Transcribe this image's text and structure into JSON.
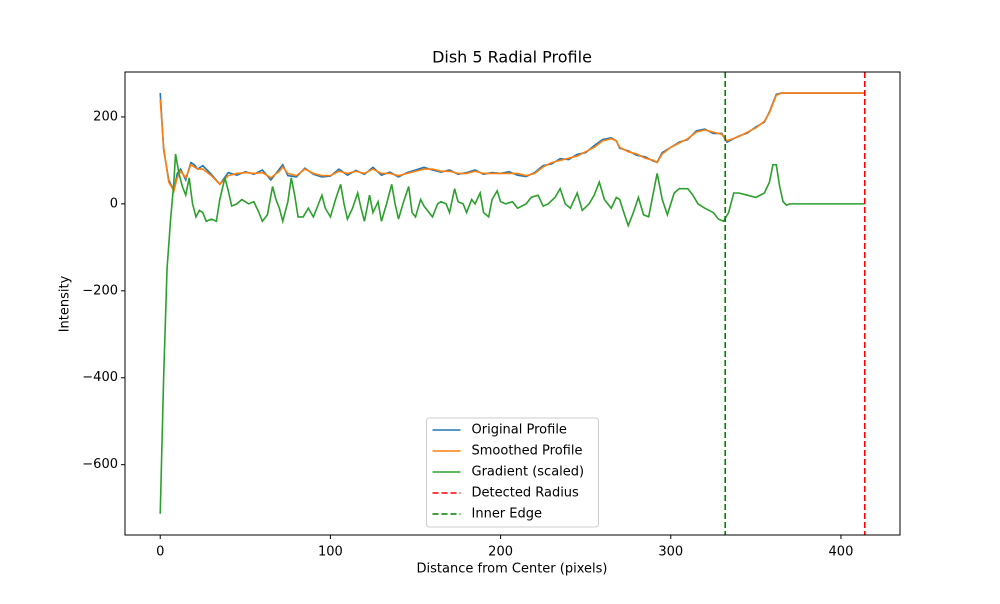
{
  "chart_data": {
    "type": "line",
    "title": "Dish 5 Radial Profile",
    "xlabel": "Distance from Center (pixels)",
    "ylabel": "Intensity",
    "xlim": [
      -20.7,
      434.7
    ],
    "ylim": [
      -761.8,
      303.4
    ],
    "xticks": [
      0,
      100,
      200,
      300,
      400
    ],
    "yticks": [
      {
        "value": -600,
        "label": "−600"
      },
      {
        "value": -400,
        "label": "−400"
      },
      {
        "value": -200,
        "label": "−200"
      },
      0,
      200
    ],
    "legend": "lower center",
    "grid": false,
    "series": [
      {
        "name": "Original Profile",
        "color": "#1f77b4",
        "x": [
          0,
          2,
          5,
          8,
          10,
          12,
          15,
          18,
          20,
          22,
          25,
          30,
          35,
          40,
          45,
          50,
          55,
          60,
          65,
          70,
          72,
          75,
          80,
          85,
          90,
          95,
          100,
          105,
          110,
          115,
          120,
          125,
          130,
          135,
          140,
          145,
          150,
          155,
          160,
          165,
          170,
          175,
          180,
          185,
          190,
          195,
          200,
          205,
          210,
          215,
          220,
          225,
          230,
          235,
          240,
          245,
          250,
          255,
          260,
          265,
          268,
          270,
          275,
          280,
          285,
          290,
          292,
          295,
          300,
          305,
          310,
          315,
          320,
          325,
          330,
          333,
          340,
          345,
          350,
          355,
          358,
          362,
          365,
          370,
          414
        ],
        "values": [
          255,
          125,
          55,
          30,
          70,
          80,
          55,
          95,
          90,
          80,
          88,
          68,
          45,
          72,
          66,
          74,
          68,
          78,
          55,
          80,
          90,
          65,
          62,
          82,
          68,
          62,
          64,
          80,
          66,
          77,
          68,
          84,
          66,
          73,
          62,
          72,
          78,
          84,
          78,
          73,
          78,
          68,
          72,
          78,
          68,
          72,
          70,
          74,
          66,
          63,
          72,
          88,
          92,
          104,
          102,
          114,
          118,
          134,
          148,
          152,
          145,
          128,
          122,
          112,
          108,
          98,
          96,
          118,
          130,
          142,
          148,
          168,
          172,
          162,
          162,
          142,
          156,
          163,
          177,
          188,
          212,
          252,
          255,
          255,
          255
        ]
      },
      {
        "name": "Smoothed Profile",
        "color": "#ff7f0e",
        "x": [
          0,
          2,
          5,
          8,
          10,
          12,
          15,
          18,
          20,
          22,
          25,
          30,
          35,
          40,
          45,
          50,
          55,
          60,
          65,
          70,
          72,
          75,
          80,
          85,
          90,
          95,
          100,
          105,
          110,
          115,
          120,
          125,
          130,
          135,
          140,
          145,
          150,
          155,
          160,
          165,
          170,
          175,
          180,
          185,
          190,
          195,
          200,
          205,
          210,
          215,
          220,
          225,
          230,
          235,
          240,
          245,
          250,
          255,
          260,
          265,
          268,
          270,
          275,
          280,
          285,
          290,
          292,
          295,
          300,
          305,
          310,
          315,
          320,
          325,
          330,
          333,
          340,
          345,
          350,
          355,
          358,
          362,
          365,
          370,
          414
        ],
        "values": [
          240,
          130,
          50,
          30,
          60,
          75,
          60,
          90,
          85,
          80,
          80,
          65,
          45,
          65,
          70,
          72,
          70,
          72,
          60,
          75,
          85,
          70,
          65,
          80,
          70,
          65,
          65,
          75,
          70,
          75,
          70,
          80,
          70,
          70,
          65,
          70,
          75,
          80,
          80,
          75,
          75,
          70,
          70,
          75,
          70,
          70,
          70,
          70,
          70,
          65,
          70,
          85,
          95,
          100,
          105,
          110,
          120,
          130,
          145,
          150,
          145,
          130,
          120,
          115,
          105,
          100,
          95,
          115,
          130,
          140,
          150,
          165,
          170,
          165,
          160,
          145,
          155,
          165,
          175,
          190,
          210,
          250,
          255,
          255,
          255
        ]
      },
      {
        "name": "Gradient (scaled)",
        "color": "#2ca02c",
        "x": [
          0,
          2,
          4,
          6,
          8,
          9,
          11,
          13,
          15,
          17,
          19,
          21,
          23,
          25,
          27,
          30,
          33,
          35,
          38,
          40,
          42,
          45,
          48,
          52,
          55,
          58,
          60,
          63,
          66,
          68,
          70,
          72,
          75,
          77,
          79,
          81,
          84,
          87,
          90,
          93,
          95,
          97,
          100,
          103,
          106,
          108,
          110,
          113,
          116,
          118,
          120,
          123,
          125,
          128,
          130,
          133,
          136,
          138,
          140,
          143,
          146,
          148,
          150,
          153,
          155,
          158,
          160,
          163,
          165,
          168,
          170,
          173,
          175,
          178,
          180,
          183,
          185,
          188,
          190,
          193,
          195,
          198,
          200,
          203,
          207,
          210,
          215,
          218,
          222,
          225,
          228,
          232,
          235,
          238,
          241,
          245,
          248,
          252,
          255,
          258,
          261,
          265,
          268,
          270,
          272,
          275,
          278,
          281,
          284,
          287,
          290,
          292,
          295,
          298,
          302,
          305,
          310,
          313,
          316,
          320,
          325,
          328,
          331,
          334,
          337,
          340,
          345,
          350,
          355,
          358,
          360,
          362,
          364,
          366,
          368,
          370,
          414
        ],
        "values": [
          -713,
          -400,
          -150,
          -40,
          50,
          115,
          70,
          40,
          20,
          60,
          0,
          -30,
          -15,
          -20,
          -40,
          -35,
          -40,
          10,
          60,
          30,
          -5,
          0,
          10,
          0,
          5,
          -20,
          -40,
          -25,
          40,
          10,
          -10,
          -40,
          5,
          60,
          20,
          -30,
          -30,
          -10,
          -30,
          0,
          20,
          -10,
          -30,
          10,
          45,
          0,
          -35,
          -10,
          25,
          -10,
          -40,
          20,
          -20,
          5,
          -40,
          0,
          45,
          0,
          -35,
          5,
          40,
          -20,
          -30,
          10,
          -5,
          -20,
          -30,
          0,
          5,
          0,
          -20,
          35,
          5,
          0,
          -20,
          10,
          0,
          25,
          -20,
          -30,
          10,
          30,
          5,
          0,
          5,
          -10,
          0,
          15,
          20,
          -5,
          0,
          15,
          35,
          0,
          -10,
          25,
          -15,
          0,
          20,
          50,
          10,
          -10,
          15,
          10,
          -15,
          -50,
          -20,
          15,
          -25,
          -30,
          30,
          70,
          10,
          -25,
          25,
          35,
          35,
          20,
          0,
          -10,
          -20,
          -35,
          -40,
          -20,
          25,
          25,
          20,
          15,
          25,
          50,
          90,
          90,
          40,
          5,
          -3,
          0,
          0
        ]
      }
    ],
    "vlines": [
      {
        "name": "Detected Radius",
        "color": "#ff0000",
        "x": 414
      },
      {
        "name": "Inner Edge",
        "color": "#008000",
        "x": 332
      }
    ]
  }
}
